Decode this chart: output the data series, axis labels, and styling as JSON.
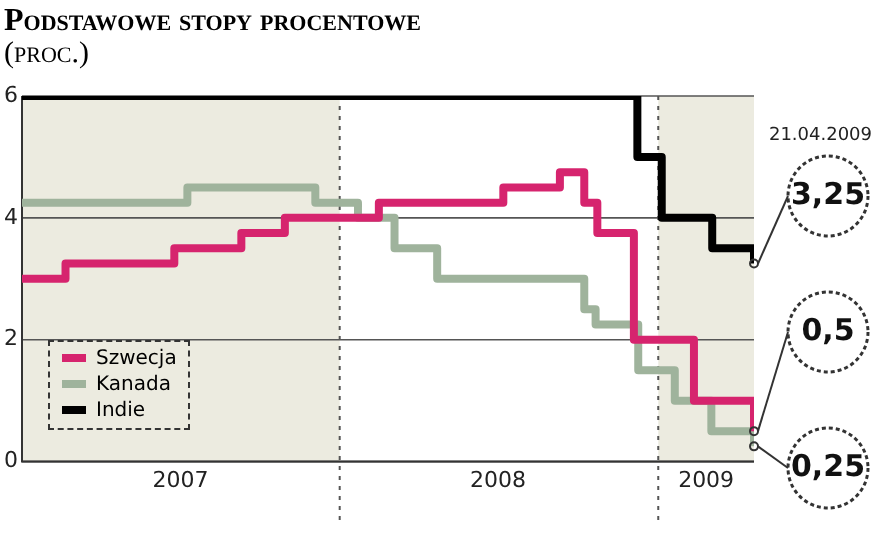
{
  "chart_data": {
    "type": "step",
    "title": "Podstawowe stopy procentowe",
    "subtitle": "(proc.)",
    "xlim": [
      "2007-01-01",
      "2009-04-21"
    ],
    "xticks": [
      {
        "value": "2007-07-02",
        "label": "2007"
      },
      {
        "value": "2008-07-01",
        "label": "2008"
      },
      {
        "value": "2009-02-25",
        "label": "2009"
      }
    ],
    "ylim": [
      0,
      6
    ],
    "yticks": [
      0,
      2,
      4,
      6
    ],
    "grid": "y",
    "legend": "bottom left",
    "marker": "none",
    "line_style": "solid",
    "bands": [
      {
        "axis": "x",
        "from": "2007-01-01",
        "to": "2008-01-01",
        "color": "#ecebe0"
      },
      {
        "axis": "x",
        "from": "2009-01-01",
        "to": "2009-04-21",
        "color": "#ecebe0"
      }
    ],
    "ref_lines": [
      {
        "axis": "x",
        "value": "2008-01-01",
        "line_style": "dotted",
        "color": "#555555"
      },
      {
        "axis": "x",
        "value": "2009-01-01",
        "line_style": "dotted",
        "color": "#555555"
      }
    ],
    "series": [
      {
        "name": "Szwecja",
        "color": "#d6246e",
        "x": [
          "2007-01-01",
          "2007-02-20",
          "2007-06-25",
          "2007-09-10",
          "2007-10-30",
          "2008-02-15",
          "2008-07-07",
          "2008-09-10",
          "2008-10-08",
          "2008-10-23",
          "2008-12-04",
          "2009-02-11",
          "2009-04-21"
        ],
        "values": [
          3.0,
          3.25,
          3.5,
          3.75,
          4.0,
          4.25,
          4.5,
          4.75,
          4.25,
          3.75,
          2.0,
          1.0,
          0.5
        ]
      },
      {
        "name": "Kanada",
        "color": "#9fb39c",
        "x": [
          "2007-01-01",
          "2007-07-10",
          "2007-12-04",
          "2008-01-22",
          "2008-03-04",
          "2008-04-22",
          "2008-10-08",
          "2008-10-21",
          "2008-12-09",
          "2009-01-20",
          "2009-03-03",
          "2009-04-21"
        ],
        "values": [
          4.25,
          4.5,
          4.25,
          4.0,
          3.5,
          3.0,
          2.5,
          2.25,
          1.5,
          1.0,
          0.5,
          0.25
        ]
      },
      {
        "name": "Indie",
        "color": "#000000",
        "x": [
          "2007-01-01",
          "2008-12-08",
          "2009-01-05",
          "2009-03-04",
          "2009-04-21"
        ],
        "values": [
          6.0,
          5.0,
          4.0,
          3.5,
          3.25
        ]
      }
    ],
    "annotations": [
      "21.04.2009",
      {
        "text": "3,25",
        "x": "2009-04-21",
        "y": 3.25
      },
      {
        "text": "0,5",
        "x": "2009-04-21",
        "y": 0.5
      },
      {
        "text": "0,25",
        "x": "2009-04-21",
        "y": 0.25
      }
    ]
  }
}
